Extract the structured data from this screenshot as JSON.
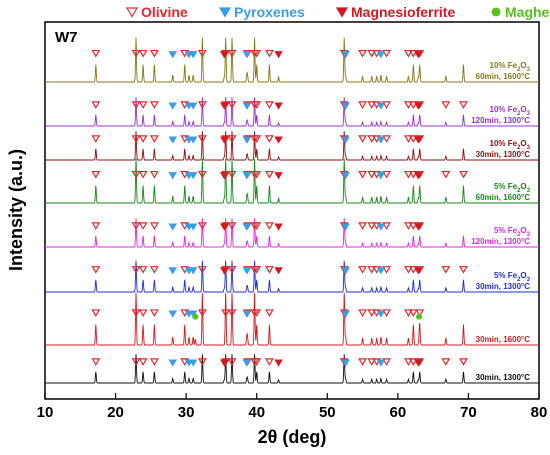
{
  "chart_data": {
    "type": "line",
    "panel_label": "W7",
    "xlabel": "2θ (deg)",
    "ylabel": "Intensity (a.u.)",
    "xlim": [
      10,
      80
    ],
    "x_ticks": [
      10,
      20,
      30,
      40,
      50,
      60,
      70,
      80
    ],
    "y_ticks": "none",
    "grid": false,
    "legend_position": "top",
    "legend": [
      {
        "label": "Olivine",
        "marker": "open-triangle-down",
        "color": "#e8262a"
      },
      {
        "label": "Pyroxenes",
        "marker": "filled-triangle-down",
        "color": "#3b9ee3"
      },
      {
        "label": "Magnesioferrite",
        "marker": "filled-triangle-down",
        "color": "#d31920"
      },
      {
        "label": "Maghemite",
        "marker": "filled-circle",
        "color": "#55c21b"
      }
    ],
    "peaks": {
      "olivine": [
        17.2,
        22.9,
        23.9,
        25.5,
        29.8,
        32.3,
        35.6,
        36.5,
        38.7,
        39.7,
        40.0,
        41.8,
        52.4,
        55.0,
        56.3,
        57.0,
        58.4,
        61.5,
        62.2,
        63.1,
        66.8,
        69.3
      ],
      "pyroxenes": [
        28.1,
        30.4,
        31.0,
        38.6,
        52.6,
        57.6
      ],
      "magnesioferrite": [
        35.4,
        43.1,
        62.9
      ],
      "maghemite": [
        31.3,
        63.0
      ]
    },
    "series": [
      {
        "name_main": "30min, 1300°C",
        "label_color": "#111111",
        "color": "#111111",
        "intensity": 0.55,
        "phases": [
          "olivine",
          "pyroxenes",
          "magnesioferrite"
        ]
      },
      {
        "name_main": "30min, 1600°C",
        "label_color": "#d31920",
        "color": "#d31920",
        "intensity": 1.0,
        "phases": [
          "olivine",
          "pyroxenes",
          "maghemite"
        ]
      },
      {
        "name_prefix": "5% Fe",
        "name_suffix": "O",
        "name_main": "30min, 1300°C",
        "label_color": "#1f2fd6",
        "color": "#1f2fd6",
        "intensity": 0.6,
        "phases": [
          "olivine",
          "pyroxenes",
          "magnesioferrite"
        ]
      },
      {
        "name_prefix": "5% Fe",
        "name_suffix": "O",
        "name_main": "120min, 1300°C",
        "label_color": "#e626e6",
        "color": "#e626e6",
        "intensity": 0.55,
        "phases": [
          "olivine",
          "pyroxenes",
          "magnesioferrite"
        ]
      },
      {
        "name_prefix": "5% Fe",
        "name_suffix": "O",
        "name_main": "60min, 1600°C",
        "label_color": "#178a17",
        "color": "#178a17",
        "intensity": 0.85,
        "phases": [
          "olivine",
          "pyroxenes",
          "magnesioferrite"
        ]
      },
      {
        "name_prefix": "10% Fe",
        "name_suffix": "O",
        "name_main": "30min, 1300°C",
        "label_color": "#8e0f0f",
        "color": "#8e0f0f",
        "intensity": 0.55,
        "phases": [
          "olivine",
          "pyroxenes",
          "magnesioferrite"
        ]
      },
      {
        "name_prefix": "10% Fe",
        "name_suffix": "O",
        "name_main": "120min, 1300°C",
        "label_color": "#9b2fd6",
        "color": "#9b2fd6",
        "intensity": 0.55,
        "phases": [
          "olivine",
          "pyroxenes",
          "magnesioferrite"
        ]
      },
      {
        "name_prefix": "10% Fe",
        "name_suffix": "O",
        "name_main": "60min, 1600°C",
        "label_color": "#85781a",
        "color": "#85781a",
        "intensity": 0.85,
        "phases": [
          "olivine",
          "pyroxenes",
          "magnesioferrite"
        ]
      }
    ]
  }
}
